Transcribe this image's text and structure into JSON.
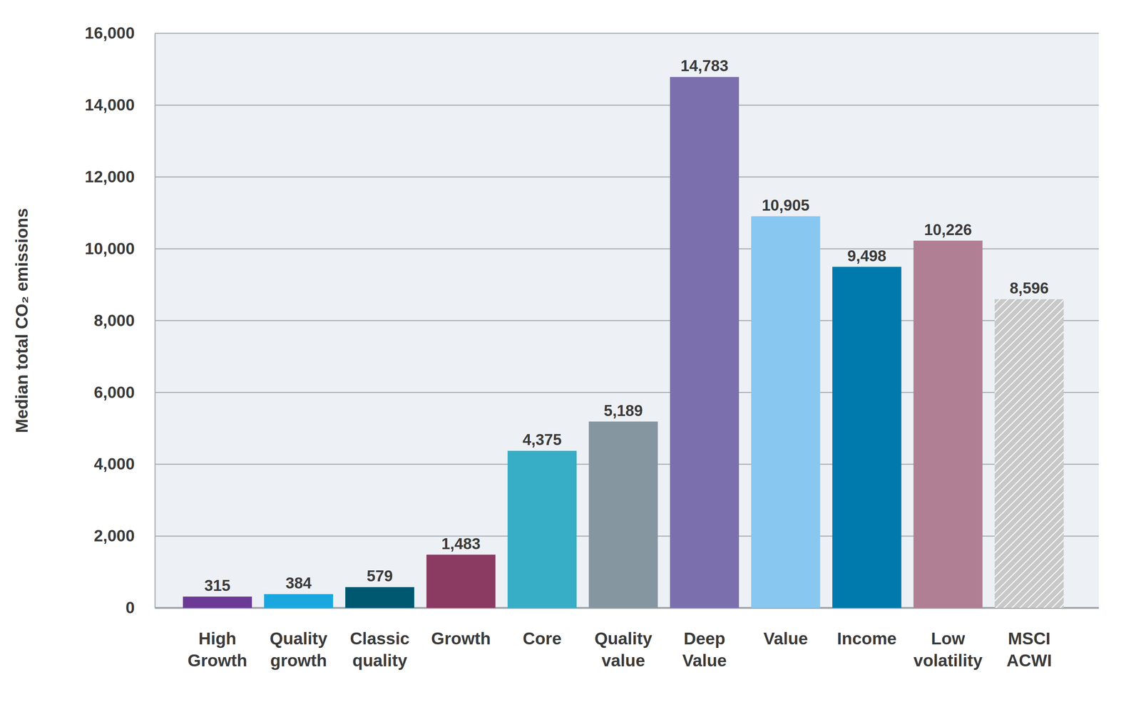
{
  "chart_data": {
    "type": "bar",
    "y_label": "Median total CO₂ emissions",
    "categories": [
      "High Growth",
      "Quality growth",
      "Classic quality",
      "Growth",
      "Core",
      "Quality value",
      "Deep Value",
      "Value",
      "Income",
      "Low volatility",
      "MSCI ACWI"
    ],
    "values": [
      315,
      384,
      579,
      1483,
      4375,
      5189,
      14783,
      10905,
      9498,
      10226,
      8596
    ],
    "value_labels": [
      "315",
      "384",
      "579",
      "1,483",
      "4,375",
      "5,189",
      "14,783",
      "10,905",
      "9,498",
      "10,226",
      "8,596"
    ],
    "colors": [
      "#6b3a96",
      "#1aa7e0",
      "#005870",
      "#8b3a62",
      "#37adc6",
      "#8696a1",
      "#7b6fad",
      "#88c8f0",
      "#0079ad",
      "#b07f94",
      "#c8c8c8"
    ],
    "ylim": [
      0,
      16000
    ],
    "yticks": [
      0,
      {
        "value": 2000,
        "label": "2,000"
      },
      {
        "value": 4000,
        "label": "4,000"
      },
      {
        "value": 6000,
        "label": "6,000"
      },
      {
        "value": 8000,
        "label": "8,000"
      },
      {
        "value": 10000,
        "label": "10,000"
      },
      {
        "value": 12000,
        "label": "12,000"
      },
      {
        "value": 14000,
        "label": "14,000"
      },
      {
        "value": 16000,
        "label": "16,000"
      }
    ],
    "grid": true,
    "data_labels": true
  }
}
